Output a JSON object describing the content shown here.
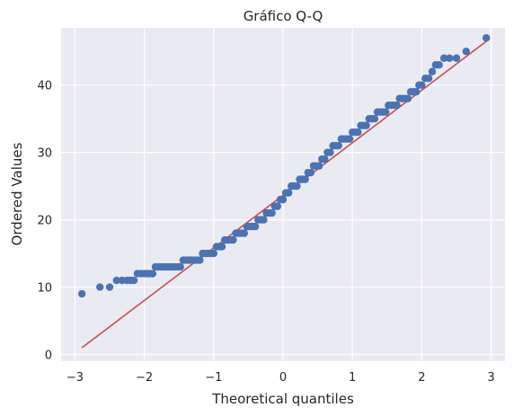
{
  "chart_data": {
    "type": "scatter",
    "title": "Gráfico Q-Q",
    "xlabel": "Theoretical quantiles",
    "ylabel": "Ordered Values",
    "xlim": [
      -3.2,
      3.2
    ],
    "ylim": [
      -1,
      48.5
    ],
    "xticks": [
      -3,
      -2,
      -1,
      0,
      1,
      2,
      3
    ],
    "yticks": [
      0,
      10,
      20,
      30,
      40
    ],
    "grid": true,
    "legend": "none",
    "colors": {
      "background": "#eaeaf2",
      "grid": "#ffffff",
      "points": "#4c72b0",
      "fit_line": "#c44e52",
      "text": "#262626"
    },
    "fit_line": {
      "x": [
        -2.9,
        2.93
      ],
      "y": [
        1.0,
        46.5
      ]
    },
    "points": {
      "x": [
        -2.9,
        -2.64,
        -2.5,
        -2.4,
        -2.32,
        -2.25,
        -2.2,
        -2.15,
        -2.1,
        -2.05,
        -2.0,
        -1.96,
        -1.92,
        -1.88,
        -1.84,
        -1.8,
        -1.76,
        -1.72,
        -1.68,
        -1.64,
        -1.6,
        -1.56,
        -1.52,
        -1.48,
        -1.44,
        -1.4,
        -1.36,
        -1.32,
        -1.28,
        -1.24,
        -1.2,
        -1.16,
        -1.12,
        -1.08,
        -1.04,
        -1.0,
        -0.96,
        -0.92,
        -0.88,
        -0.84,
        -0.8,
        -0.76,
        -0.72,
        -0.68,
        -0.64,
        -0.6,
        -0.56,
        -0.52,
        -0.48,
        -0.44,
        -0.4,
        -0.36,
        -0.32,
        -0.28,
        -0.24,
        -0.2,
        -0.16,
        -0.12,
        -0.08,
        -0.04,
        0.0,
        0.04,
        0.08,
        0.12,
        0.16,
        0.2,
        0.24,
        0.28,
        0.32,
        0.36,
        0.4,
        0.44,
        0.48,
        0.52,
        0.56,
        0.6,
        0.64,
        0.68,
        0.72,
        0.76,
        0.8,
        0.84,
        0.88,
        0.92,
        0.96,
        1.0,
        1.04,
        1.08,
        1.12,
        1.16,
        1.2,
        1.24,
        1.28,
        1.32,
        1.36,
        1.4,
        1.44,
        1.48,
        1.52,
        1.56,
        1.6,
        1.64,
        1.68,
        1.72,
        1.76,
        1.8,
        1.84,
        1.88,
        1.92,
        1.96,
        2.0,
        2.05,
        2.1,
        2.15,
        2.2,
        2.25,
        2.32,
        2.4,
        2.5,
        2.64,
        2.93
      ],
      "y": [
        9,
        10,
        10,
        11,
        11,
        11,
        11,
        11,
        12,
        12,
        12,
        12,
        12,
        12,
        13,
        13,
        13,
        13,
        13,
        13,
        13,
        13,
        13,
        13,
        14,
        14,
        14,
        14,
        14,
        14,
        14,
        15,
        15,
        15,
        15,
        15,
        16,
        16,
        16,
        17,
        17,
        17,
        17,
        18,
        18,
        18,
        18,
        19,
        19,
        19,
        19,
        20,
        20,
        20,
        21,
        21,
        21,
        22,
        22,
        23,
        23,
        24,
        24,
        25,
        25,
        25,
        26,
        26,
        26,
        27,
        27,
        28,
        28,
        28,
        29,
        29,
        30,
        30,
        31,
        31,
        31,
        32,
        32,
        32,
        32,
        33,
        33,
        33,
        34,
        34,
        34,
        35,
        35,
        35,
        36,
        36,
        36,
        36,
        37,
        37,
        37,
        37,
        38,
        38,
        38,
        38,
        39,
        39,
        39,
        40,
        40,
        41,
        41,
        42,
        43,
        43,
        44,
        44,
        44,
        45,
        47
      ]
    }
  }
}
